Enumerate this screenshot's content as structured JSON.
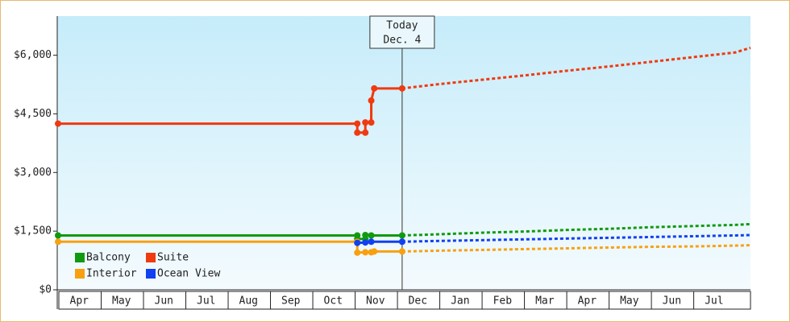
{
  "chart_data": {
    "type": "line",
    "categories": [
      "Apr",
      "May",
      "Jun",
      "Jul",
      "Aug",
      "Sep",
      "Oct",
      "Nov",
      "Dec",
      "Jan",
      "Feb",
      "Mar",
      "Apr",
      "May",
      "Jun",
      "Jul"
    ],
    "xlim": [
      0,
      16.36
    ],
    "ylim": [
      0,
      7000
    ],
    "yticks": [
      {
        "value": 0,
        "label": "$0"
      },
      {
        "value": 1500,
        "label": "$1,500"
      },
      {
        "value": 3000,
        "label": "$3,000"
      },
      {
        "value": 4500,
        "label": "$4,500"
      },
      {
        "value": 6000,
        "label": "$6,000"
      }
    ],
    "today": {
      "x": 8.13,
      "label": [
        "Today",
        "Dec. 4"
      ]
    },
    "series": [
      {
        "name": "Balcony",
        "color": "#109a10",
        "x": [
          0,
          7.07,
          7.07,
          7.26,
          7.26,
          7.4,
          8.13
        ],
        "values": [
          1390,
          1390,
          1300,
          1300,
          1400,
          1390,
          1390
        ],
        "forecast_x": [
          8.13,
          9,
          10,
          11,
          12,
          13,
          14,
          15,
          16,
          16.36
        ],
        "forecast_values": [
          1390,
          1420,
          1460,
          1490,
          1530,
          1560,
          1600,
          1630,
          1660,
          1680
        ]
      },
      {
        "name": "Suite",
        "color": "#f03a10",
        "x": [
          0,
          7.07,
          7.07,
          7.26,
          7.26,
          7.4,
          7.4,
          7.47,
          8.13
        ],
        "values": [
          4250,
          4250,
          4020,
          4020,
          4280,
          4280,
          4840,
          5150,
          5150
        ],
        "forecast_x": [
          8.13,
          9,
          10,
          11,
          12,
          13,
          14,
          15,
          16,
          16.36
        ],
        "forecast_values": [
          5150,
          5260,
          5370,
          5480,
          5600,
          5710,
          5830,
          5950,
          6070,
          6190
        ]
      },
      {
        "name": "Interior",
        "color": "#f8a010",
        "x": [
          0,
          7.07,
          7.07,
          7.26,
          7.4,
          7.47,
          8.13
        ],
        "values": [
          1230,
          1230,
          950,
          960,
          960,
          980,
          980
        ],
        "forecast_x": [
          8.13,
          9,
          10,
          11,
          12,
          13,
          14,
          15,
          16,
          16.36
        ],
        "forecast_values": [
          980,
          1000,
          1020,
          1040,
          1060,
          1080,
          1100,
          1110,
          1130,
          1140
        ]
      },
      {
        "name": "Ocean View",
        "color": "#1040f0",
        "x": [
          7.07,
          7.26,
          7.4,
          8.13
        ],
        "values": [
          1200,
          1210,
          1230,
          1230
        ],
        "forecast_x": [
          8.13,
          9,
          10,
          11,
          12,
          13,
          14,
          15,
          16,
          16.36
        ],
        "forecast_values": [
          1230,
          1250,
          1270,
          1290,
          1310,
          1330,
          1350,
          1370,
          1390,
          1400
        ]
      }
    ]
  }
}
